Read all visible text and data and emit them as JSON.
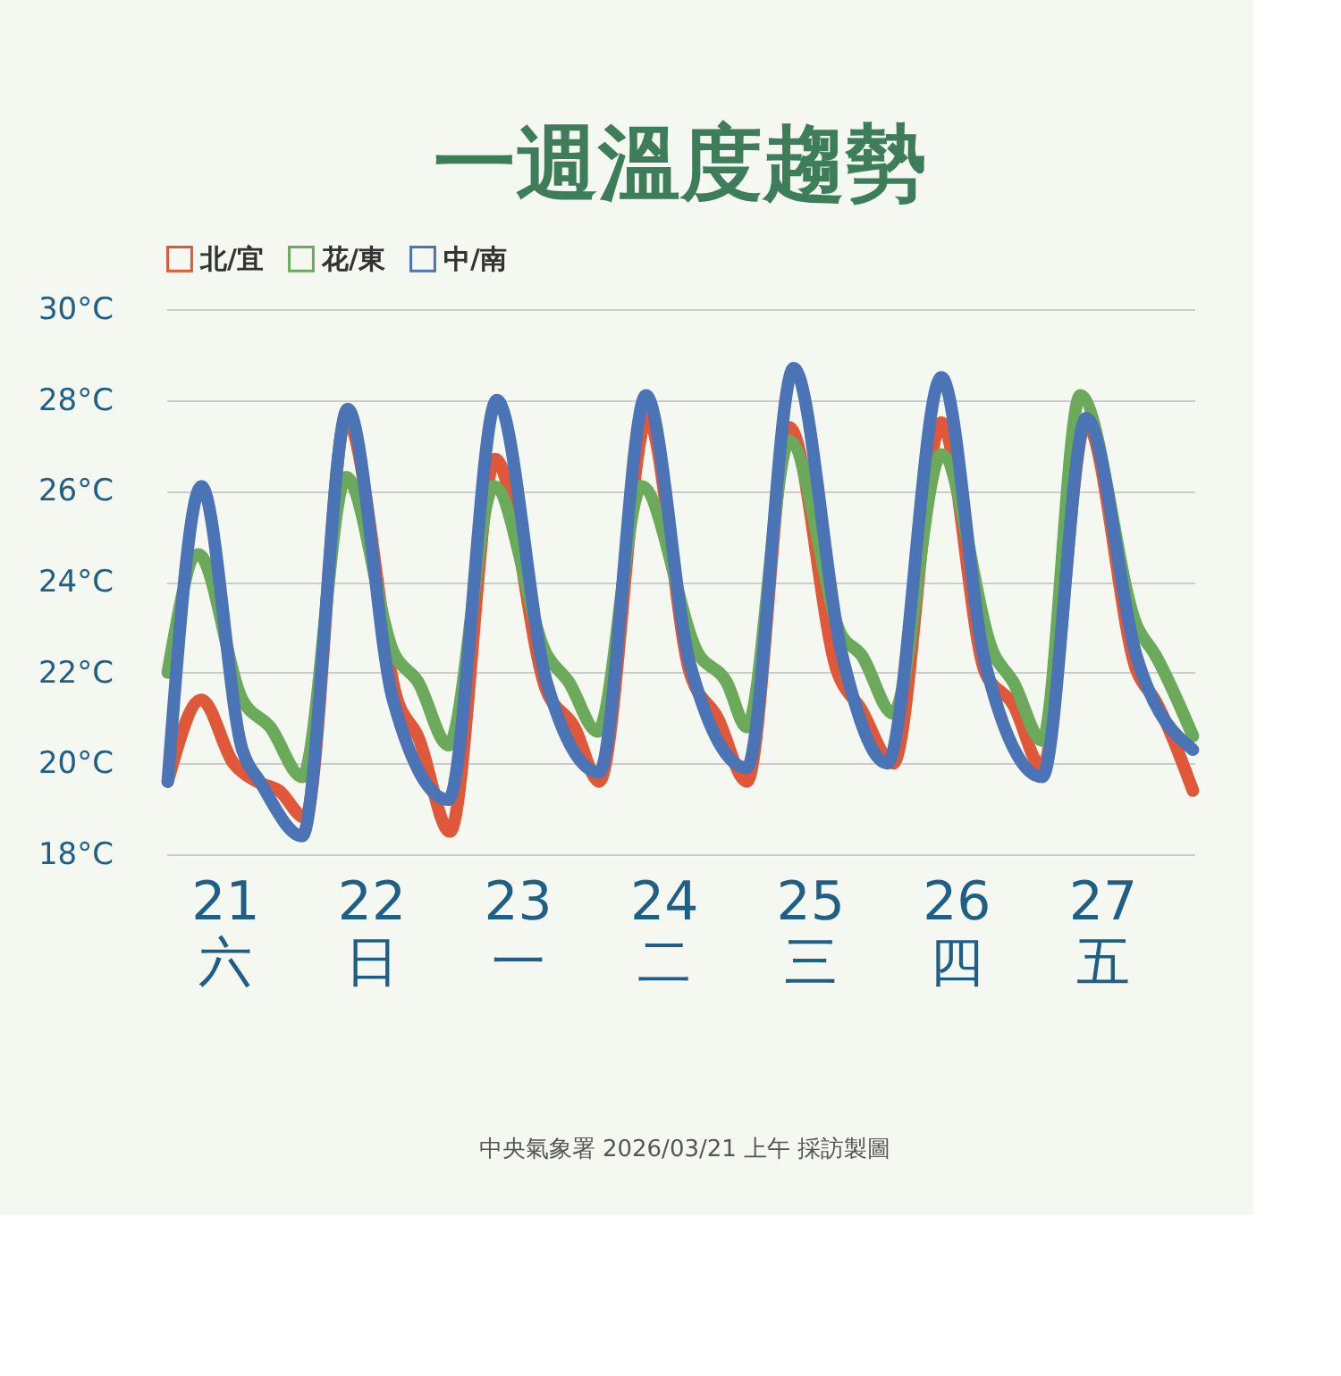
{
  "chart_data": {
    "type": "line",
    "title": "一週溫度趨勢",
    "xlim": [
      20.6,
      27.63
    ],
    "ylim": [
      18,
      30
    ],
    "xticks": [
      {
        "value": 21,
        "label": "21\n六"
      },
      {
        "value": 22,
        "label": "22\n日"
      },
      {
        "value": 23,
        "label": "23\n一"
      },
      {
        "value": 24,
        "label": "24\n二"
      },
      {
        "value": 25,
        "label": "25\n三"
      },
      {
        "value": 26,
        "label": "26\n四"
      },
      {
        "value": 27,
        "label": "27\n五"
      }
    ],
    "yticks": [
      {
        "value": 18,
        "label": "18°C"
      },
      {
        "value": 20,
        "label": "20°C"
      },
      {
        "value": 22,
        "label": "22°C"
      },
      {
        "value": 24,
        "label": "24°C"
      },
      {
        "value": 26,
        "label": "26°C"
      },
      {
        "value": 28,
        "label": "28°C"
      },
      {
        "value": 30,
        "label": "30°C"
      }
    ],
    "grid": "y",
    "legend": "top",
    "marker": "none",
    "line_style": "solid",
    "annotations": [
      "中央氣象署 2026/03/21 上午 採訪製圖"
    ],
    "series": [
      {
        "name": "北/宜",
        "color": "#e0583a",
        "x": [
          20.61,
          20.84,
          21.06,
          21.22,
          21.37,
          21.55,
          21.83,
          22.19,
          22.32,
          22.54,
          22.85,
          23.2,
          23.39,
          23.56,
          23.89,
          24.18,
          24.37,
          24.57,
          24.86,
          25.19,
          25.35,
          25.57,
          25.9,
          26.2,
          26.39,
          26.59,
          26.89,
          27.24,
          27.36,
          27.62
        ],
        "values": [
          19.6,
          21.4,
          20.0,
          19.6,
          19.4,
          18.8,
          27.6,
          21.3,
          20.6,
          18.5,
          26.7,
          21.6,
          20.8,
          19.6,
          27.6,
          22.0,
          21.0,
          19.6,
          27.4,
          22.0,
          21.2,
          20.0,
          27.5,
          22.0,
          21.3,
          19.9,
          27.5,
          22.0,
          21.4,
          19.4
        ]
      },
      {
        "name": "花/東",
        "color": "#6aaa5a",
        "x": [
          20.61,
          20.82,
          21.12,
          21.31,
          21.53,
          21.83,
          22.16,
          22.32,
          22.53,
          22.84,
          23.2,
          23.35,
          23.55,
          23.85,
          24.24,
          24.43,
          24.57,
          24.86,
          25.22,
          25.35,
          25.57,
          25.9,
          26.26,
          26.39,
          26.59,
          26.85,
          27.24,
          27.36,
          27.62
        ],
        "values": [
          22.0,
          24.6,
          21.4,
          20.8,
          19.7,
          26.3,
          22.4,
          21.8,
          20.4,
          26.1,
          22.4,
          21.8,
          20.7,
          26.1,
          22.4,
          21.8,
          20.8,
          27.1,
          22.8,
          22.4,
          21.1,
          26.8,
          22.4,
          21.8,
          20.5,
          28.1,
          23.0,
          22.4,
          20.6
        ]
      },
      {
        "name": "中/南",
        "color": "#4a74b5",
        "x": [
          20.61,
          20.84,
          21.12,
          21.24,
          21.53,
          21.84,
          22.15,
          22.53,
          22.86,
          23.2,
          23.56,
          23.88,
          24.18,
          24.57,
          24.89,
          25.22,
          25.53,
          25.9,
          26.2,
          26.59,
          26.89,
          27.24,
          27.62
        ],
        "values": [
          19.6,
          26.1,
          20.3,
          19.6,
          18.4,
          27.8,
          21.4,
          19.2,
          28.0,
          21.8,
          19.8,
          28.1,
          22.2,
          19.9,
          28.7,
          22.4,
          20.0,
          28.5,
          22.2,
          19.7,
          27.6,
          22.3,
          20.3
        ]
      }
    ]
  }
}
